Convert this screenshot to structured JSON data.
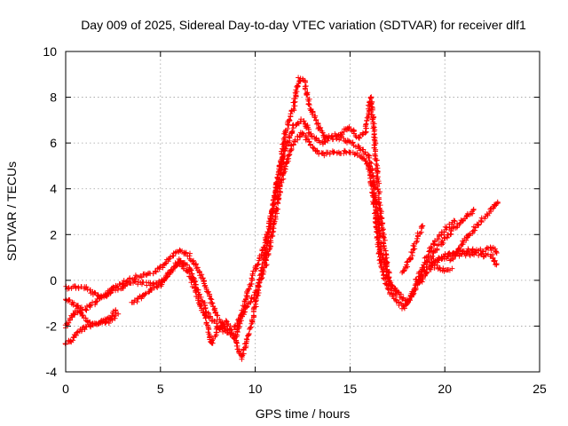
{
  "chart_data": {
    "type": "scatter",
    "title": "Day 009 of 2025, Sidereal Day-to-day VTEC variation (SDTVAR) for receiver dlf1",
    "xlabel": "GPS time / hours",
    "ylabel": "SDTVAR / TECUs",
    "xlim": [
      0,
      25
    ],
    "ylim": [
      -4,
      10
    ],
    "x_ticks": [
      "0",
      "5",
      "10",
      "15",
      "20",
      "25"
    ],
    "y_ticks": [
      "-4",
      "-2",
      "0",
      "2",
      "4",
      "6",
      "8",
      "10"
    ],
    "grid": true,
    "marker": "+",
    "color": "#ff0000",
    "series": [
      {
        "name": "trace-1",
        "points": [
          [
            0,
            -0.3
          ],
          [
            1,
            -0.3
          ],
          [
            1.5,
            -0.6
          ],
          [
            2,
            -0.8
          ],
          [
            2.5,
            -0.3
          ],
          [
            3,
            -0.1
          ],
          [
            3.5,
            0.1
          ],
          [
            4,
            0.2
          ],
          [
            4.5,
            0.3
          ],
          [
            5,
            0.5
          ],
          [
            5.5,
            1.0
          ],
          [
            6,
            1.3
          ],
          [
            6.5,
            1.1
          ],
          [
            7,
            0.5
          ],
          [
            7.5,
            -0.5
          ],
          [
            8,
            -1.6
          ],
          [
            8.5,
            -2.2
          ],
          [
            9,
            -2.5
          ],
          [
            9.3,
            -1.5
          ],
          [
            9.6,
            -0.5
          ],
          [
            10,
            0.5
          ],
          [
            10.5,
            1.5
          ],
          [
            11,
            3.5
          ],
          [
            11.5,
            5.5
          ],
          [
            12,
            6.7
          ],
          [
            12.5,
            7.0
          ],
          [
            13,
            6.3
          ],
          [
            13.5,
            6.0
          ],
          [
            14,
            6.2
          ],
          [
            14.5,
            6.2
          ],
          [
            15,
            6.0
          ],
          [
            15.5,
            5.8
          ],
          [
            16,
            5.4
          ],
          [
            16.3,
            4.0
          ],
          [
            16.6,
            1.5
          ],
          [
            17,
            0.0
          ],
          [
            17.5,
            -0.5
          ],
          [
            18,
            -1.0
          ],
          [
            18.5,
            -0.3
          ],
          [
            19,
            0.3
          ],
          [
            19.5,
            0.8
          ],
          [
            20,
            1.1
          ],
          [
            20.5,
            1.2
          ],
          [
            21,
            1.3
          ],
          [
            21.5,
            1.3
          ],
          [
            22,
            1.3
          ],
          [
            22.5,
            1.4
          ],
          [
            22.8,
            1.2
          ]
        ]
      },
      {
        "name": "trace-2",
        "points": [
          [
            0,
            -0.8
          ],
          [
            0.5,
            -1.1
          ],
          [
            1,
            -1.3
          ],
          [
            1.5,
            -1.0
          ],
          [
            2,
            -0.7
          ],
          [
            2.5,
            -0.4
          ],
          [
            3,
            -0.3
          ],
          [
            3.5,
            -0.1
          ],
          [
            4,
            -0.1
          ],
          [
            4.5,
            -0.2
          ],
          [
            5,
            -0.1
          ],
          [
            5.5,
            0.4
          ],
          [
            6,
            0.9
          ],
          [
            6.5,
            0.6
          ],
          [
            7,
            -0.5
          ],
          [
            7.5,
            -1.5
          ],
          [
            8,
            -2.0
          ],
          [
            8.5,
            -2.3
          ],
          [
            9,
            -2.0
          ],
          [
            9.5,
            -1.2
          ],
          [
            10,
            -0.6
          ],
          [
            10.5,
            0.5
          ],
          [
            11,
            2.5
          ],
          [
            11.5,
            4.8
          ],
          [
            12,
            6.0
          ],
          [
            12.5,
            6.5
          ],
          [
            13,
            5.8
          ],
          [
            13.5,
            5.5
          ],
          [
            14,
            5.6
          ],
          [
            14.5,
            5.6
          ],
          [
            15,
            5.6
          ],
          [
            15.5,
            5.5
          ],
          [
            16,
            5.0
          ],
          [
            16.3,
            3.2
          ],
          [
            16.6,
            0.8
          ],
          [
            17,
            -0.4
          ],
          [
            17.5,
            -0.9
          ],
          [
            17.8,
            -1.2
          ],
          [
            18.2,
            -0.8
          ],
          [
            18.6,
            0.0
          ],
          [
            19,
            0.5
          ],
          [
            19.5,
            0.9
          ],
          [
            20,
            1.0
          ],
          [
            20.5,
            1.1
          ],
          [
            21,
            1.1
          ],
          [
            21.5,
            1.2
          ],
          [
            22,
            1.1
          ],
          [
            22.5,
            1.1
          ],
          [
            22.8,
            0.6
          ]
        ]
      },
      {
        "name": "trace-3",
        "points": [
          [
            0,
            -2.0
          ],
          [
            0.3,
            -1.6
          ],
          [
            0.6,
            -1.3
          ],
          [
            0.9,
            -1.6
          ],
          [
            1.3,
            -1.9
          ],
          [
            1.7,
            -1.9
          ],
          [
            2.2,
            -1.7
          ],
          [
            2.7,
            -1.3
          ]
        ]
      },
      {
        "name": "trace-4",
        "points": [
          [
            0,
            -2.8
          ],
          [
            0.3,
            -2.6
          ],
          [
            0.6,
            -2.3
          ],
          [
            0.9,
            -2.1
          ],
          [
            1.2,
            -2.0
          ],
          [
            1.5,
            -1.9
          ],
          [
            1.9,
            -1.8
          ],
          [
            2.3,
            -1.8
          ],
          [
            2.8,
            -1.4
          ]
        ]
      },
      {
        "name": "trace-5",
        "points": [
          [
            3.5,
            -1.0
          ],
          [
            4,
            -0.7
          ],
          [
            4.5,
            -0.4
          ],
          [
            5,
            -0.2
          ],
          [
            5.5,
            0.3
          ],
          [
            6,
            0.8
          ],
          [
            6.5,
            0.3
          ],
          [
            7,
            -0.8
          ],
          [
            7.5,
            -2.0
          ],
          [
            7.7,
            -2.8
          ],
          [
            8,
            -2.2
          ],
          [
            8.5,
            -1.8
          ],
          [
            9,
            -2.7
          ],
          [
            9.3,
            -3.4
          ],
          [
            9.6,
            -2.5
          ],
          [
            9.9,
            -1.5
          ],
          [
            10.2,
            -0.2
          ],
          [
            10.5,
            1.0
          ],
          [
            10.8,
            2.5
          ],
          [
            11.2,
            4.5
          ],
          [
            11.6,
            6.5
          ],
          [
            12,
            7.5
          ],
          [
            12.3,
            8.8
          ],
          [
            12.6,
            8.7
          ],
          [
            12.9,
            7.5
          ],
          [
            13.3,
            6.8
          ],
          [
            13.7,
            6.2
          ],
          [
            14,
            6.3
          ],
          [
            14.5,
            6.4
          ],
          [
            15,
            6.7
          ],
          [
            15.5,
            6.2
          ],
          [
            15.8,
            6.5
          ],
          [
            16.1,
            8.0
          ],
          [
            16.3,
            6.0
          ],
          [
            16.6,
            3.0
          ],
          [
            16.9,
            1.0
          ],
          [
            17.2,
            -0.5
          ],
          [
            17.5,
            -0.6
          ]
        ]
      },
      {
        "name": "trace-6",
        "points": [
          [
            18.5,
            0.0
          ],
          [
            18.9,
            0.6
          ],
          [
            19.3,
            1.1
          ],
          [
            19.7,
            1.5
          ],
          [
            20.1,
            1.9
          ],
          [
            20.5,
            2.3
          ],
          [
            20.9,
            2.6
          ],
          [
            21.3,
            2.9
          ],
          [
            21.6,
            3.1
          ]
        ]
      },
      {
        "name": "trace-7",
        "points": [
          [
            20.3,
            0.9
          ],
          [
            20.7,
            1.3
          ],
          [
            21.1,
            1.8
          ],
          [
            21.5,
            2.2
          ],
          [
            21.9,
            2.6
          ],
          [
            22.3,
            2.9
          ],
          [
            22.6,
            3.2
          ],
          [
            22.8,
            3.5
          ]
        ]
      },
      {
        "name": "trace-8",
        "points": [
          [
            17.8,
            0.3
          ],
          [
            18.2,
            1.0
          ],
          [
            18.6,
            2.0
          ],
          [
            18.9,
            2.5
          ]
        ]
      },
      {
        "name": "trace-9",
        "points": [
          [
            19.0,
            1.0
          ],
          [
            19.4,
            1.6
          ],
          [
            19.8,
            2.0
          ],
          [
            20.2,
            2.4
          ],
          [
            20.6,
            2.6
          ]
        ]
      },
      {
        "name": "trace-10",
        "points": [
          [
            19.5,
            0.6
          ],
          [
            20,
            0.4
          ],
          [
            20.4,
            0.5
          ]
        ]
      }
    ]
  }
}
